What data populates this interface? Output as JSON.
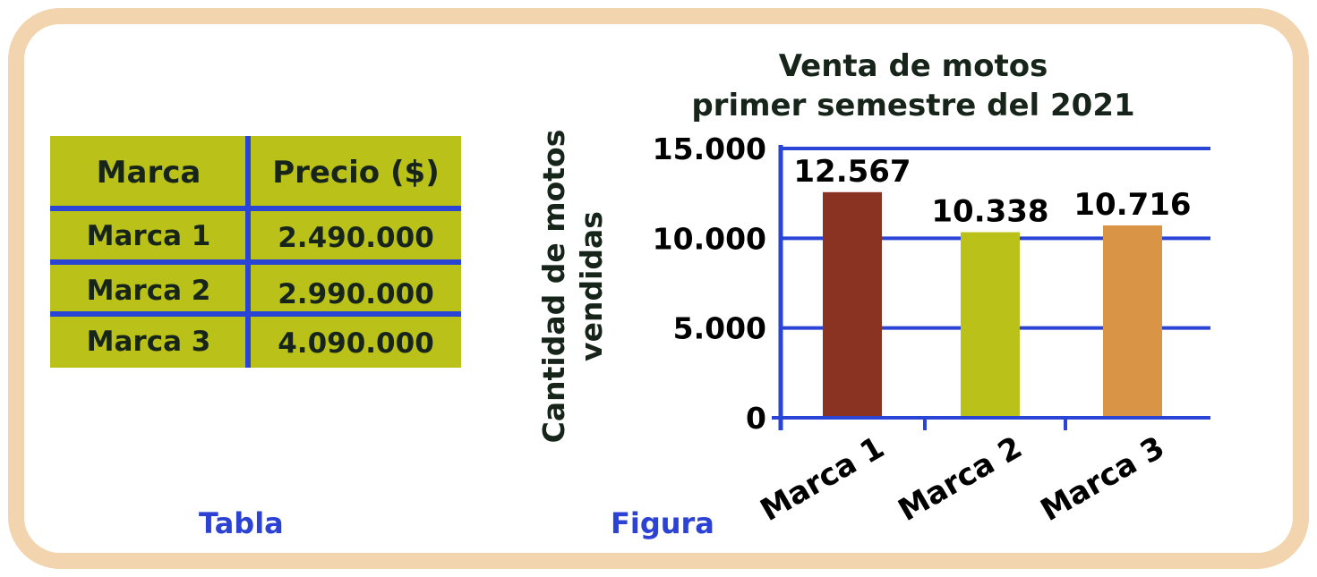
{
  "table": {
    "headers": [
      "Marca",
      "Precio ($)"
    ],
    "rows": [
      [
        "Marca 1",
        "2.490.000"
      ],
      [
        "Marca 2",
        "2.990.000"
      ],
      [
        "Marca 3",
        "4.090.000"
      ]
    ],
    "caption": "Tabla"
  },
  "figure_caption": "Figura",
  "colors": {
    "frame": "#f2d4ae",
    "table_fill": "#bac118",
    "grid_lines": "#2a44d6",
    "caption_text": "#2c42d4",
    "text": "#16241a"
  },
  "chart_data": {
    "type": "bar",
    "title": "Venta de motos primer semestre del 2021",
    "title_lines": [
      "Venta de motos",
      "primer semestre del 2021"
    ],
    "ylabel": "Cantidad de motos vendidas",
    "xlabel": "",
    "categories": [
      "Marca 1",
      "Marca 2",
      "Marca 3"
    ],
    "values": [
      12567,
      10338,
      10716
    ],
    "value_labels": [
      "12.567",
      "10.338",
      "10.716"
    ],
    "bar_colors": [
      "#8b3322",
      "#bac118",
      "#d99446"
    ],
    "yticks": [
      0,
      5000,
      10000,
      15000
    ],
    "ytick_labels": [
      "0",
      "5.000",
      "10.000",
      "15.000"
    ],
    "ylim": [
      0,
      15000
    ],
    "grid": true
  }
}
